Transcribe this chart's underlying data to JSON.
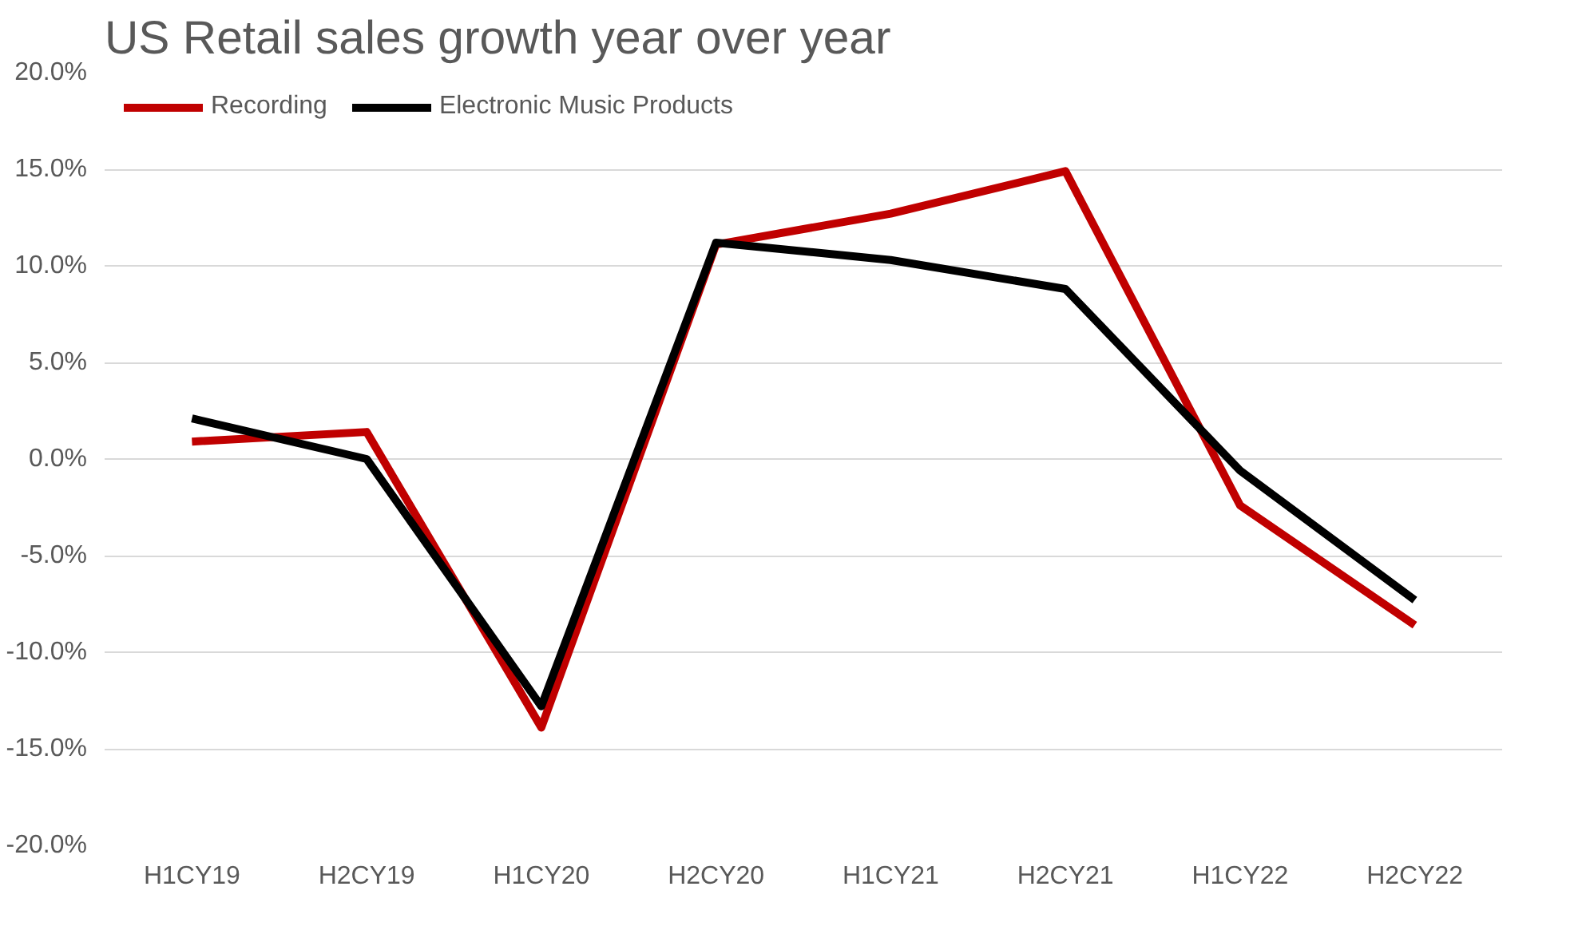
{
  "chart_data": {
    "type": "line",
    "title": "US Retail sales growth year over year",
    "categories": [
      "H1CY19",
      "H2CY19",
      "H1CY20",
      "H2CY20",
      "H1CY21",
      "H2CY21",
      "H1CY22",
      "H2CY22"
    ],
    "series": [
      {
        "name": "Recording",
        "color": "#c00000",
        "values": [
          0.9,
          1.4,
          -13.9,
          11.1,
          12.7,
          14.9,
          -2.4,
          -8.6
        ]
      },
      {
        "name": "Electronic Music Products",
        "color": "#000000",
        "values": [
          2.1,
          0.0,
          -12.8,
          11.2,
          10.3,
          8.8,
          -0.6,
          -7.3
        ]
      }
    ],
    "ylim": [
      -20,
      20
    ],
    "yticks": [
      {
        "value": -20,
        "label": "-20.0%"
      },
      {
        "value": -15,
        "label": "-15.0%"
      },
      {
        "value": -10,
        "label": "-10.0%"
      },
      {
        "value": -5,
        "label": "-5.0%"
      },
      {
        "value": 0,
        "label": "0.0%"
      },
      {
        "value": 5,
        "label": "5.0%"
      },
      {
        "value": 10,
        "label": "10.0%"
      },
      {
        "value": 15,
        "label": "15.0%"
      },
      {
        "value": 20,
        "label": "20.0%"
      }
    ],
    "grid": "y",
    "legend": "top left",
    "marker": "none",
    "line_style": "solid"
  }
}
